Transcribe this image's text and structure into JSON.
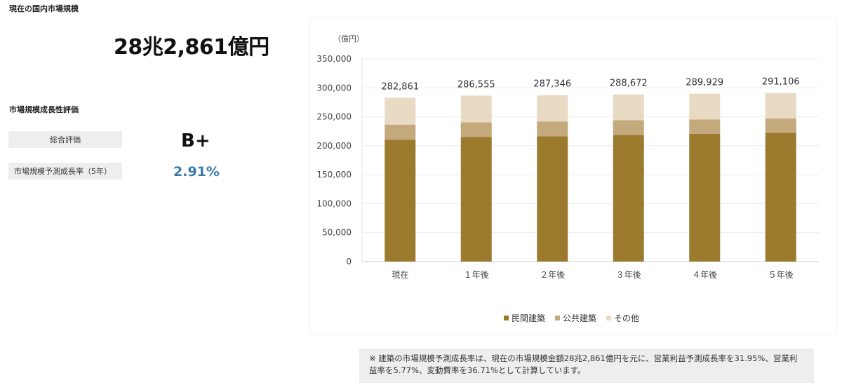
{
  "market": {
    "title": "現在の国内市場規模",
    "value": "28兆2,861億円"
  },
  "growth": {
    "title": "市場規模成長性評価",
    "overall_label": "総合評価",
    "overall_value": "B+",
    "rate_label": "市場規模予測成長率（5年）",
    "rate_value": "2.91%"
  },
  "colors": {
    "private": "#9b7a2e",
    "public": "#c4a97c",
    "other": "#e8dac3",
    "rate_text": "#3a7ca8"
  },
  "chart_data": {
    "type": "bar",
    "stacked": true,
    "unit_label": "（億円）",
    "categories": [
      "現在",
      "１年後",
      "２年後",
      "３年後",
      "４年後",
      "５年後"
    ],
    "series": [
      {
        "name": "民間建築",
        "values": [
          210500,
          215000,
          216500,
          218500,
          220500,
          222500
        ]
      },
      {
        "name": "公共建築",
        "values": [
          26000,
          25500,
          25500,
          25500,
          25000,
          24500
        ]
      },
      {
        "name": "その他",
        "values": [
          46361,
          46055,
          45346,
          44672,
          44429,
          44106
        ]
      }
    ],
    "totals": [
      "282,861",
      "286,555",
      "287,346",
      "288,672",
      "289,929",
      "291,106"
    ],
    "ylim": [
      0,
      350000
    ],
    "yticks": [
      "0",
      "50,000",
      "100,000",
      "150,000",
      "200,000",
      "250,000",
      "300,000",
      "350,000"
    ],
    "grid": true,
    "legend_position": "bottom"
  },
  "note": "※ 建築の市場規模予測成長率は、現在の市場規模金額28兆2,861億円を元に、営業利益予測成長率を31.95%、営業利益率を5.77%、変動費率を36.71%として計算しています。"
}
